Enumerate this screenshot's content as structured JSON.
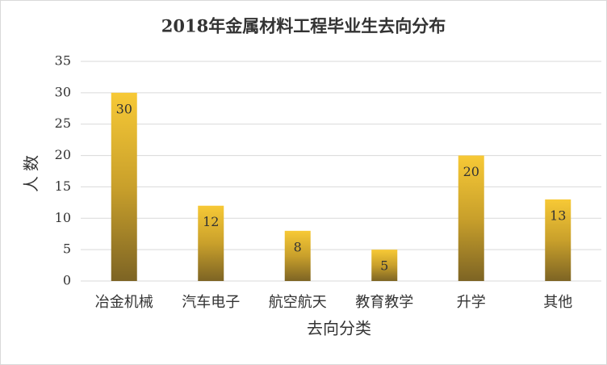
{
  "chart_data": {
    "type": "bar",
    "title": "2018年金属材料工程毕业生去向分布",
    "x_label": "去向分类",
    "y_label": "人数",
    "categories": [
      "冶金机械",
      "汽车电子",
      "航空航天",
      "教育教学",
      "升学",
      "其他"
    ],
    "values": [
      30,
      12,
      8,
      5,
      20,
      13
    ],
    "color": "#f7c936",
    "ylim": [
      0,
      35
    ],
    "yticks": [
      0,
      5,
      10,
      15,
      20,
      25,
      30,
      35
    ],
    "grid": true,
    "data_labels": true
  }
}
